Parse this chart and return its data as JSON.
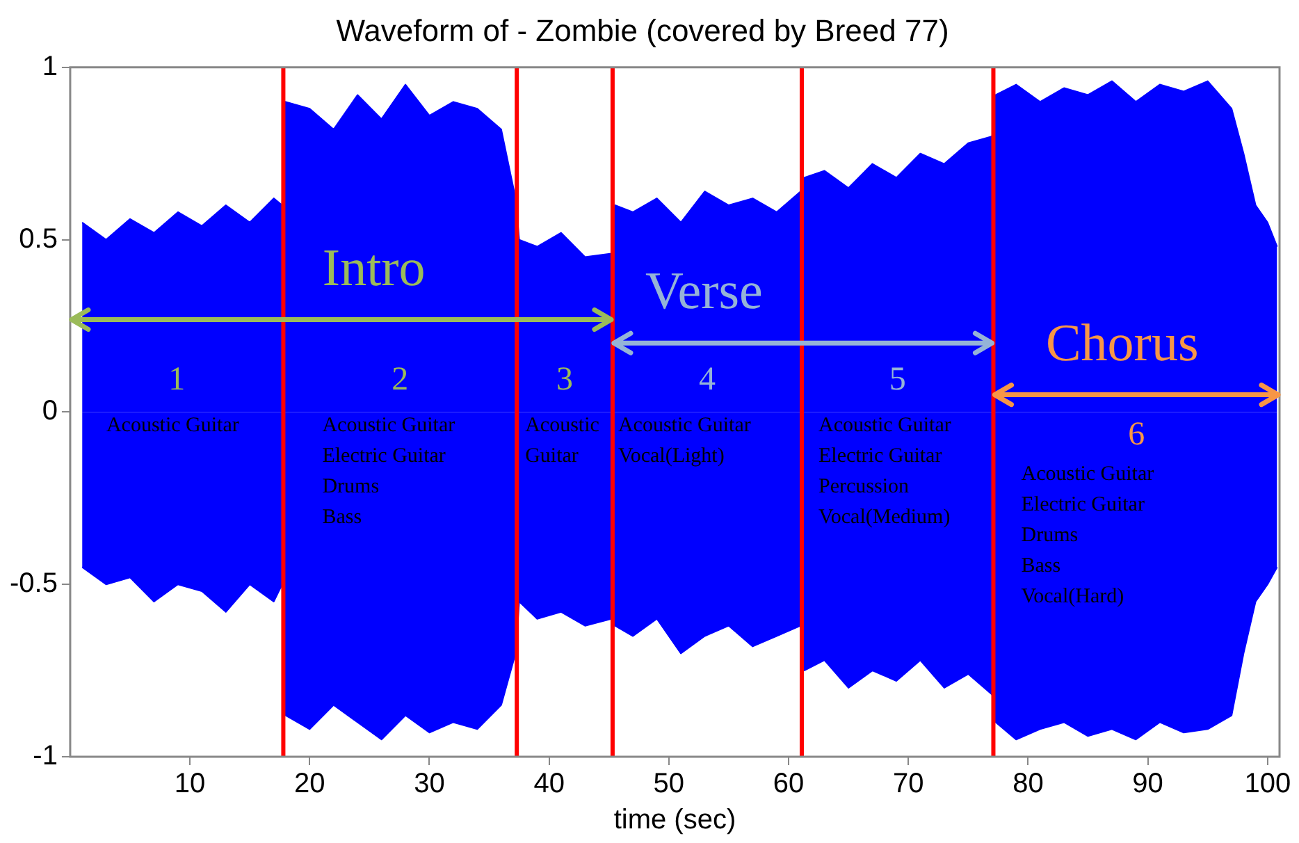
{
  "chart_data": {
    "type": "area",
    "title": "Waveform of - Zombie (covered by Breed 77)",
    "xlabel": "time (sec)",
    "xlim": [
      0,
      101
    ],
    "xticks": [
      10,
      20,
      30,
      40,
      50,
      60,
      70,
      80,
      90,
      100
    ],
    "ylim": [
      -1,
      1
    ],
    "yticks": [
      -1,
      -0.5,
      0,
      0.5,
      1
    ],
    "grid": false,
    "legend": false,
    "series": [
      {
        "color": "#0000ff",
        "x": [
          1,
          3,
          5,
          7,
          9,
          11,
          13,
          15,
          17,
          17.7,
          18,
          20,
          22,
          24,
          26,
          28,
          30,
          32,
          34,
          36,
          37.2,
          37.5,
          39,
          41,
          43,
          45.2,
          45.5,
          47,
          49,
          51,
          53,
          55,
          57,
          59,
          61,
          61.3,
          63,
          65,
          67,
          69,
          71,
          73,
          75,
          77,
          77.3,
          79,
          81,
          83,
          85,
          87,
          89,
          91,
          93,
          95,
          97,
          98,
          99,
          100,
          100.8
        ],
        "values": [
          0.55,
          0.5,
          0.56,
          0.52,
          0.58,
          0.54,
          0.6,
          0.55,
          0.62,
          0.6,
          0.9,
          0.88,
          0.82,
          0.92,
          0.85,
          0.95,
          0.86,
          0.9,
          0.88,
          0.82,
          0.62,
          0.5,
          0.48,
          0.52,
          0.45,
          0.46,
          0.6,
          0.58,
          0.62,
          0.55,
          0.64,
          0.6,
          0.62,
          0.58,
          0.64,
          0.68,
          0.7,
          0.65,
          0.72,
          0.68,
          0.75,
          0.72,
          0.78,
          0.8,
          0.92,
          0.95,
          0.9,
          0.94,
          0.92,
          0.96,
          0.9,
          0.95,
          0.93,
          0.96,
          0.88,
          0.75,
          0.6,
          0.55,
          0.48
        ]
      },
      {
        "color": "#0000ff",
        "x": [
          1,
          3,
          5,
          7,
          9,
          11,
          13,
          15,
          17,
          17.7,
          18,
          20,
          22,
          24,
          26,
          28,
          30,
          32,
          34,
          36,
          37.2,
          37.5,
          39,
          41,
          43,
          45.2,
          45.5,
          47,
          49,
          51,
          53,
          55,
          57,
          59,
          61,
          61.3,
          63,
          65,
          67,
          69,
          71,
          73,
          75,
          77,
          77.3,
          79,
          81,
          83,
          85,
          87,
          89,
          91,
          93,
          95,
          97,
          98,
          99,
          100,
          100.8
        ],
        "values": [
          -0.45,
          -0.5,
          -0.48,
          -0.55,
          -0.5,
          -0.52,
          -0.58,
          -0.5,
          -0.55,
          -0.5,
          -0.88,
          -0.92,
          -0.85,
          -0.9,
          -0.95,
          -0.88,
          -0.93,
          -0.9,
          -0.92,
          -0.85,
          -0.7,
          -0.55,
          -0.6,
          -0.58,
          -0.62,
          -0.6,
          -0.62,
          -0.65,
          -0.6,
          -0.7,
          -0.65,
          -0.62,
          -0.68,
          -0.65,
          -0.62,
          -0.75,
          -0.72,
          -0.8,
          -0.75,
          -0.78,
          -0.72,
          -0.8,
          -0.76,
          -0.82,
          -0.9,
          -0.95,
          -0.92,
          -0.9,
          -0.94,
          -0.92,
          -0.95,
          -0.9,
          -0.93,
          -0.92,
          -0.88,
          -0.7,
          -0.55,
          -0.5,
          -0.45
        ]
      }
    ],
    "ref_lines": [
      {
        "axis": "x",
        "value": 17.8,
        "color": "#ff0000"
      },
      {
        "axis": "x",
        "value": 37.3,
        "color": "#ff0000"
      },
      {
        "axis": "x",
        "value": 45.3,
        "color": "#ff0000"
      },
      {
        "axis": "x",
        "value": 61.1,
        "color": "#ff0000"
      },
      {
        "axis": "x",
        "value": 77.1,
        "color": "#ff0000"
      }
    ],
    "annotations": [
      "Intro",
      {
        "text": "Verse",
        "x": 77.1,
        "y": 0.2
      },
      {
        "text": "Chorus",
        "x": 77.1,
        "y": 0.05
      },
      "1",
      "2",
      "3",
      "4",
      "5",
      "6",
      "Acoustic Guitar",
      "Acoustic Guitar\nElectric Guitar\nDrums\nBass",
      "Acoustic\nGuitar",
      "Acoustic Guitar\nVocal(Light)",
      "Acoustic Guitar\nElectric Guitar\nPercussion\nVocal(Medium)",
      "Acoustic Guitar\nElectric Guitar\nDrums\nBass\nVocal(Hard)"
    ]
  }
}
